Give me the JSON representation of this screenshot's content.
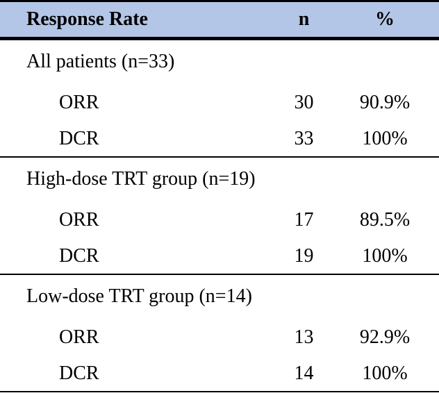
{
  "colors": {
    "header_bg": "#b4c6e7",
    "rule": "#000000",
    "text": "#000000",
    "page_bg": "#ffffff"
  },
  "table": {
    "header": {
      "col_label": "Response Rate",
      "col_n": "n",
      "col_pct": "%"
    },
    "sections": [
      {
        "label": "All patients (n=33)",
        "rows": [
          {
            "metric": "ORR",
            "n": "30",
            "pct": "90.9%"
          },
          {
            "metric": "DCR",
            "n": "33",
            "pct": "100%"
          }
        ]
      },
      {
        "label": "High-dose TRT group (n=19)",
        "rows": [
          {
            "metric": "ORR",
            "n": "17",
            "pct": "89.5%"
          },
          {
            "metric": "DCR",
            "n": "19",
            "pct": "100%"
          }
        ]
      },
      {
        "label": "Low-dose TRT group (n=14)",
        "rows": [
          {
            "metric": "ORR",
            "n": "13",
            "pct": "92.9%"
          },
          {
            "metric": "DCR",
            "n": "14",
            "pct": "100%"
          }
        ]
      }
    ]
  },
  "chart_data": {
    "type": "table",
    "title": "Response Rate",
    "columns": [
      "Response Rate",
      "n",
      "%"
    ],
    "rows": [
      [
        "All patients (n=33)",
        "",
        ""
      ],
      [
        "ORR",
        "30",
        "90.9%"
      ],
      [
        "DCR",
        "33",
        "100%"
      ],
      [
        "High-dose TRT group (n=19)",
        "",
        ""
      ],
      [
        "ORR",
        "17",
        "89.5%"
      ],
      [
        "DCR",
        "19",
        "100%"
      ],
      [
        "Low-dose TRT group (n=14)",
        "",
        ""
      ],
      [
        "ORR",
        "13",
        "92.9%"
      ],
      [
        "DCR",
        "14",
        "100%"
      ]
    ]
  }
}
